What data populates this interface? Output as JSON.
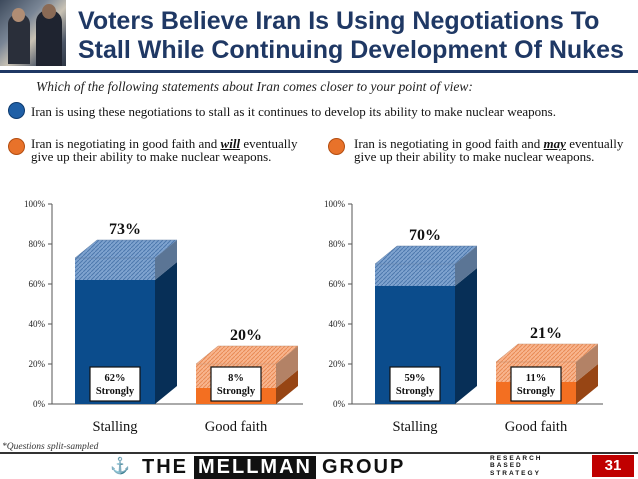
{
  "header": {
    "title": "Voters Believe Iran Is Using Negotiations To Stall While Continuing Development Of Nukes"
  },
  "question": "Which of the following statements about Iran comes closer to your point of view:",
  "options": [
    {
      "pre": "Iran is using these negotiations to stall as it continues to develop its ability to make nuclear weapons.",
      "emph": "",
      "post": "",
      "color": "#1f5fa6"
    },
    {
      "pre": "Iran is negotiating in good faith and ",
      "emph": "will",
      "post": " eventually give up their ability to make nuclear weapons.",
      "color": "#e8722a"
    },
    {
      "pre": "Iran is negotiating in good faith and ",
      "emph": "may",
      "post": " eventually give up their ability to make nuclear weapons.",
      "color": "#e8722a"
    }
  ],
  "chart_data": [
    {
      "type": "bar",
      "stacked": true,
      "categories": [
        "Stalling",
        "Good faith"
      ],
      "totals": [
        73,
        20
      ],
      "strongly": [
        62,
        8
      ],
      "strong_label": "Strongly",
      "ylim": [
        0,
        100
      ],
      "yticks": [
        "0%",
        "20%",
        "40%",
        "60%",
        "80%",
        "100%"
      ],
      "colors": {
        "stall_strong": "#0b4c8c",
        "stall_rest": "#7fa3cf",
        "good_strong": "#f36f21",
        "good_rest": "#f8b58e"
      }
    },
    {
      "type": "bar",
      "stacked": true,
      "categories": [
        "Stalling",
        "Good faith"
      ],
      "totals": [
        70,
        21
      ],
      "strongly": [
        59,
        11
      ],
      "strong_label": "Strongly",
      "ylim": [
        0,
        100
      ],
      "yticks": [
        "0%",
        "20%",
        "40%",
        "60%",
        "80%",
        "100%"
      ],
      "colors": {
        "stall_strong": "#0b4c8c",
        "stall_rest": "#7fa3cf",
        "good_strong": "#f36f21",
        "good_rest": "#f8b58e"
      }
    }
  ],
  "footnote": "*Questions split-sampled",
  "footer": {
    "brand_pre": "THE",
    "brand_hl": "MELLMAN",
    "brand_post": "GROUP",
    "tag_lines": [
      "RESEARCH",
      "BASED",
      "STRATEGY"
    ],
    "page_number": "31"
  }
}
